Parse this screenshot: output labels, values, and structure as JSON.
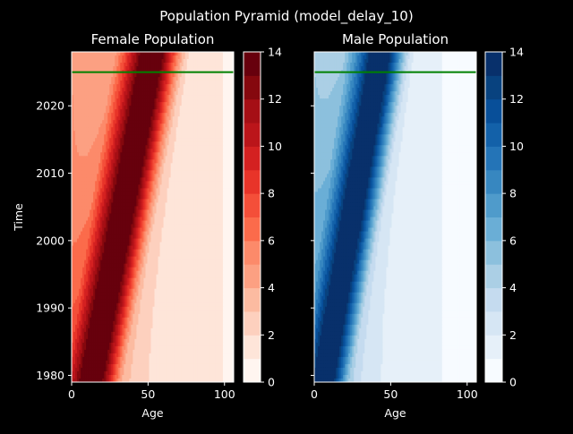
{
  "figure": {
    "title": "Population Pyramid (model_delay_10)",
    "background": "#000000",
    "foreground": "#ffffff",
    "reference_line_color": "#008000"
  },
  "chart_data": [
    {
      "type": "heatmap",
      "title": "Female Population",
      "xlabel": "Age",
      "ylabel": "Time",
      "xlim": [
        0,
        106
      ],
      "ylim": [
        1979,
        2028
      ],
      "xticks": [
        0,
        50,
        100
      ],
      "yticks": [
        1980,
        1990,
        2000,
        2010,
        2020
      ],
      "reference_line_y": 2025,
      "ridge": {
        "age_at_1979": 15,
        "age_at_2028": 55,
        "peak": 13.8,
        "width": 11,
        "secondary_peak_age": 30,
        "secondary_peak": 5,
        "baseline_young": 4.5,
        "baseline_old": 0.5
      },
      "colorbar": {
        "range": [
          0,
          14
        ],
        "levels": 14,
        "ticks": [
          0,
          2,
          4,
          6,
          8,
          10,
          12,
          14
        ]
      },
      "colormap": "Reds",
      "colors": [
        "#fff5f0",
        "#fee5d9",
        "#fdd0be",
        "#fcbba1",
        "#fca082",
        "#fc8a6a",
        "#fb6b4b",
        "#f44f39",
        "#e83429",
        "#d42121",
        "#bb151a",
        "#a50f15",
        "#85080e",
        "#67000d"
      ]
    },
    {
      "type": "heatmap",
      "title": "Male Population",
      "xlabel": "Age",
      "ylabel": "",
      "xlim": [
        0,
        106
      ],
      "ylim": [
        1979,
        2028
      ],
      "xticks": [
        0,
        50,
        100
      ],
      "yticks": [
        1980,
        1990,
        2000,
        2010,
        2020
      ],
      "reference_line_y": 2025,
      "ridge": {
        "age_at_1979": 8,
        "age_at_2028": 45,
        "peak": 13.8,
        "width": 10,
        "secondary_peak_age": 25,
        "secondary_peak": 5,
        "baseline_young": 4.5,
        "baseline_old": 0.3
      },
      "colorbar": {
        "range": [
          0,
          14
        ],
        "levels": 14,
        "ticks": [
          0,
          2,
          4,
          6,
          8,
          10,
          12,
          14
        ]
      },
      "colormap": "Blues",
      "colors": [
        "#f7fbff",
        "#e6f0f9",
        "#d6e6f4",
        "#c5dbef",
        "#abcfe5",
        "#8cc0dd",
        "#6aaed6",
        "#4f9bcb",
        "#3787c0",
        "#2474b7",
        "#1361a9",
        "#084f99",
        "#08427f",
        "#08306b"
      ]
    }
  ]
}
